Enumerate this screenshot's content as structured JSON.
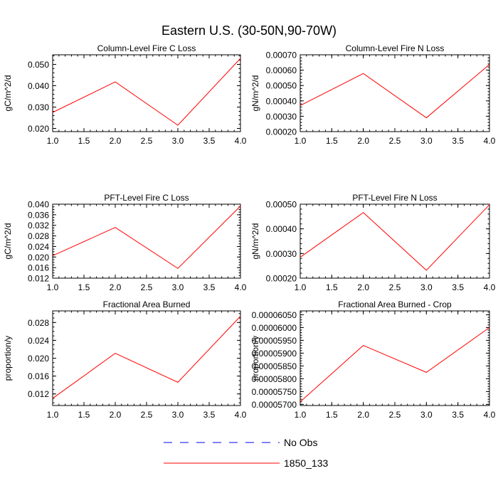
{
  "title": "Eastern U.S. (30-50N,90-70W)",
  "chart_data": [
    {
      "type": "line",
      "title": "Column-Level Fire C Loss",
      "ylabel": "gC/m^2/d",
      "x": [
        1.0,
        2.0,
        3.0,
        4.0
      ],
      "xlim": [
        1.0,
        4.0
      ],
      "xticks": [
        1.0,
        1.5,
        2.0,
        2.5,
        3.0,
        3.5,
        4.0
      ],
      "xtick_labels": [
        "1.0",
        "1.5",
        "2.0",
        "2.5",
        "3.0",
        "3.5",
        "4.0"
      ],
      "ylim": [
        0.0185,
        0.0545
      ],
      "yticks": [
        0.02,
        0.03,
        0.04,
        0.05
      ],
      "ytick_labels": [
        "0.020",
        "0.030",
        "0.040",
        "0.050"
      ],
      "yminor": 0.002,
      "series": [
        {
          "name": "1850_133",
          "values": [
            0.0275,
            0.0418,
            0.0215,
            0.0528
          ]
        }
      ]
    },
    {
      "type": "line",
      "title": "Column-Level Fire N Loss",
      "ylabel": "gN/m^2/d",
      "x": [
        1.0,
        2.0,
        3.0,
        4.0
      ],
      "xlim": [
        1.0,
        4.0
      ],
      "xticks": [
        1.0,
        1.5,
        2.0,
        2.5,
        3.0,
        3.5,
        4.0
      ],
      "xtick_labels": [
        "1.0",
        "1.5",
        "2.0",
        "2.5",
        "3.0",
        "3.5",
        "4.0"
      ],
      "ylim": [
        0.0002,
        0.0007
      ],
      "yticks": [
        0.0002,
        0.0003,
        0.0004,
        0.0005,
        0.0006,
        0.0007
      ],
      "ytick_labels": [
        "0.00020",
        "0.00030",
        "0.00040",
        "0.00050",
        "0.00060",
        "0.00070"
      ],
      "yminor": 2e-05,
      "series": [
        {
          "name": "1850_133",
          "values": [
            0.00037,
            0.000578,
            0.00029,
            0.000637
          ]
        }
      ]
    },
    {
      "type": "line",
      "title": "PFT-Level Fire C Loss",
      "ylabel": "gC/m^2/d",
      "x": [
        1.0,
        2.0,
        3.0,
        4.0
      ],
      "xlim": [
        1.0,
        4.0
      ],
      "xticks": [
        1.0,
        1.5,
        2.0,
        2.5,
        3.0,
        3.5,
        4.0
      ],
      "xtick_labels": [
        "1.0",
        "1.5",
        "2.0",
        "2.5",
        "3.0",
        "3.5",
        "4.0"
      ],
      "ylim": [
        0.012,
        0.04
      ],
      "yticks": [
        0.012,
        0.016,
        0.02,
        0.024,
        0.028,
        0.032,
        0.036,
        0.04
      ],
      "ytick_labels": [
        "0.012",
        "0.016",
        "0.020",
        "0.024",
        "0.028",
        "0.032",
        "0.036",
        "0.040"
      ],
      "yminor": 0.001,
      "series": [
        {
          "name": "1850_133",
          "values": [
            0.0205,
            0.0312,
            0.0157,
            0.0393
          ]
        }
      ]
    },
    {
      "type": "line",
      "title": "PFT-Level Fire N Loss",
      "ylabel": "gN/m^2/d",
      "x": [
        1.0,
        2.0,
        3.0,
        4.0
      ],
      "xlim": [
        1.0,
        4.0
      ],
      "xticks": [
        1.0,
        1.5,
        2.0,
        2.5,
        3.0,
        3.5,
        4.0
      ],
      "xtick_labels": [
        "1.0",
        "1.5",
        "2.0",
        "2.5",
        "3.0",
        "3.5",
        "4.0"
      ],
      "ylim": [
        0.0002,
        0.0005
      ],
      "yticks": [
        0.0002,
        0.0003,
        0.0004,
        0.0005
      ],
      "ytick_labels": [
        "0.00020",
        "0.00030",
        "0.00040",
        "0.00050"
      ],
      "yminor": 2e-05,
      "series": [
        {
          "name": "1850_133",
          "values": [
            0.000285,
            0.000466,
            0.000232,
            0.000498
          ]
        }
      ]
    },
    {
      "type": "line",
      "title": "Fractional Area Burned",
      "ylabel": "proportion/y",
      "x": [
        1.0,
        2.0,
        3.0,
        4.0
      ],
      "xlim": [
        1.0,
        4.0
      ],
      "xticks": [
        1.0,
        1.5,
        2.0,
        2.5,
        3.0,
        3.5,
        4.0
      ],
      "xtick_labels": [
        "1.0",
        "1.5",
        "2.0",
        "2.5",
        "3.0",
        "3.5",
        "4.0"
      ],
      "ylim": [
        0.0094,
        0.0306
      ],
      "yticks": [
        0.012,
        0.016,
        0.02,
        0.024,
        0.028
      ],
      "ytick_labels": [
        "0.012",
        "0.016",
        "0.020",
        "0.024",
        "0.028"
      ],
      "yminor": 0.001,
      "series": [
        {
          "name": "1850_133",
          "values": [
            0.011,
            0.0211,
            0.0146,
            0.0294
          ]
        }
      ]
    },
    {
      "type": "line",
      "title": "Fractional Area Burned - Crop",
      "ylabel": "proportion/y",
      "x": [
        1.0,
        2.0,
        3.0,
        4.0
      ],
      "xlim": [
        1.0,
        4.0
      ],
      "xticks": [
        1.0,
        1.5,
        2.0,
        2.5,
        3.0,
        3.5,
        4.0
      ],
      "xtick_labels": [
        "1.0",
        "1.5",
        "2.0",
        "2.5",
        "3.0",
        "3.5",
        "4.0"
      ],
      "ylim": [
        5.6955e-05,
        6.065e-05
      ],
      "yticks": [
        5.7e-05,
        5.75e-05,
        5.8e-05,
        5.85e-05,
        5.9e-05,
        5.95e-05,
        6e-05,
        6.05e-05
      ],
      "ytick_labels": [
        "0.00005700",
        "0.00005750",
        "0.00005800",
        "0.00005850",
        "0.00005900",
        "0.00005950",
        "0.00006000",
        "0.00006050"
      ],
      "yminor": 1e-07,
      "series": [
        {
          "name": "1850_133",
          "values": [
            5.71e-05,
            5.93e-05,
            5.825e-05,
            6e-05
          ]
        }
      ]
    }
  ],
  "legend": {
    "position": "bottom-center",
    "items": [
      {
        "label": "No Obs",
        "color": "#0000ff",
        "style": "dashed"
      },
      {
        "label": "1850_133",
        "color": "#ff0000",
        "style": "solid"
      }
    ]
  }
}
